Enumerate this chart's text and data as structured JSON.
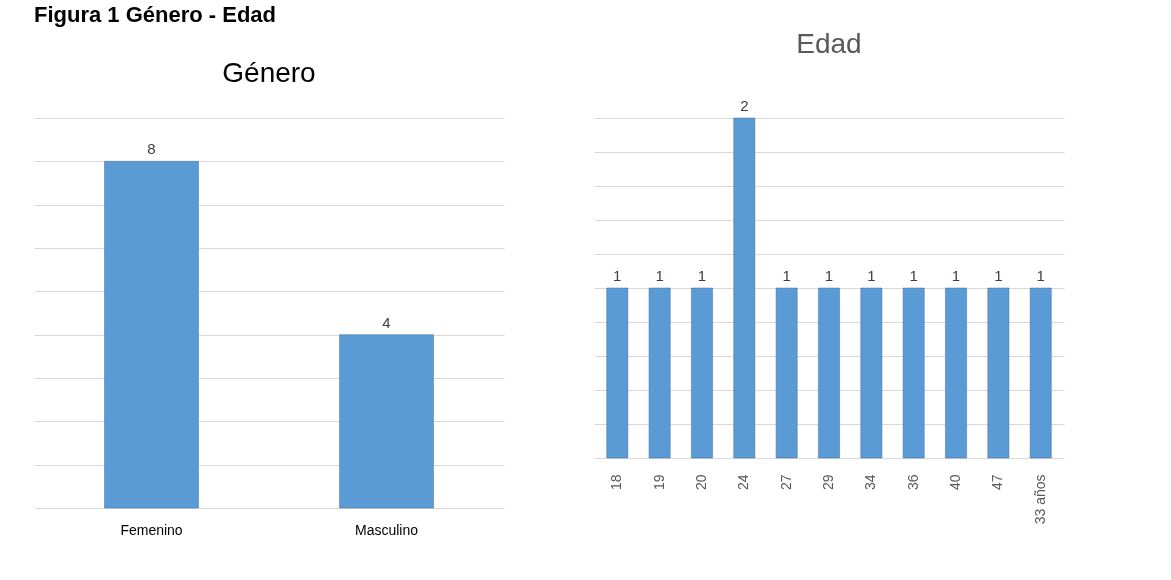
{
  "chart_data": [
    {
      "type": "bar",
      "title": "Género",
      "annotations": [
        "Figura 1 Género - Edad"
      ],
      "categories": [
        "Femenino",
        "Masculino"
      ],
      "values": [
        8,
        4
      ],
      "color": "#5b9bd5",
      "data_labels": true,
      "grid": "y",
      "tick_labels": "x",
      "ylim": [
        0,
        9
      ],
      "yticks": [
        {
          "value": 0,
          "label": null
        },
        {
          "value": 1,
          "label": null
        },
        {
          "value": 2,
          "label": null
        },
        {
          "value": 3,
          "label": null
        },
        {
          "value": 4,
          "label": null
        },
        {
          "value": 5,
          "label": null
        },
        {
          "value": 6,
          "label": null
        },
        {
          "value": 7,
          "label": null
        },
        {
          "value": 8,
          "label": null
        },
        {
          "value": 9,
          "label": null
        }
      ]
    },
    {
      "type": "bar",
      "title": "Edad",
      "categories": [
        "18",
        "19",
        "20",
        "24",
        "27",
        "29",
        "34",
        "36",
        "40",
        "47",
        "33 años"
      ],
      "values": [
        1,
        1,
        1,
        2,
        1,
        1,
        1,
        1,
        1,
        1,
        1
      ],
      "color": "#5b9bd5",
      "data_labels": true,
      "grid": "y",
      "tick_labels": "x",
      "ylim": [
        0,
        2
      ],
      "yticks": [
        {
          "value": 0,
          "label": null
        },
        {
          "value": 0.2,
          "label": null
        },
        {
          "value": 0.4,
          "label": null
        },
        {
          "value": 0.6,
          "label": null
        },
        {
          "value": 0.8,
          "label": null
        },
        {
          "value": 1,
          "label": null
        },
        {
          "value": 1.2,
          "label": null
        },
        {
          "value": 1.4,
          "label": null
        },
        {
          "value": 1.6,
          "label": null
        },
        {
          "value": 1.8,
          "label": null
        },
        {
          "value": 2,
          "label": null
        }
      ]
    }
  ]
}
